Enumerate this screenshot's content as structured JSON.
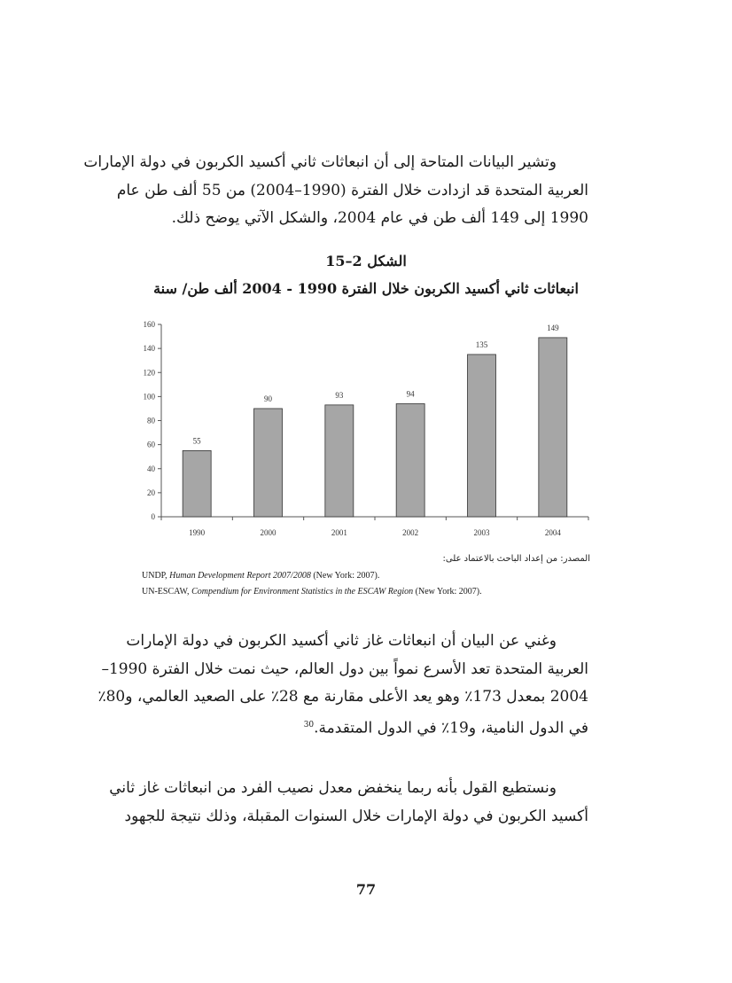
{
  "paragraph1": [
    "وتشير البيانات المتاحة إلى أن انبعاثات ثاني أكسيد الكربون في دولة الإمارات",
    "العربية المتحدة قد ازدادت خلال الفترة (1990–2004) من 55 ألف طن عام",
    "1990 إلى 149 ألف طن في عام 2004، والشكل الآتي يوضح ذلك."
  ],
  "figure": {
    "number": "الشكل 2–15",
    "title": "انبعاثات ثاني أكسيد الكربون خلال الفترة 1990 - 2004 ألف طن/ سنة"
  },
  "chart_data": {
    "type": "bar",
    "categories": [
      "1990",
      "2000",
      "2001",
      "2002",
      "2003",
      "2004"
    ],
    "values": [
      55,
      90,
      93,
      94,
      135,
      149
    ],
    "data_labels": [
      "55",
      "90",
      "93",
      "94",
      "135",
      "149"
    ],
    "title": "",
    "xlabel": "",
    "ylabel": "",
    "ylim": [
      0,
      160
    ],
    "yticks": [
      "0",
      "20",
      "40",
      "60",
      "80",
      "100",
      "120",
      "140",
      "160"
    ],
    "grid": false,
    "bar_color": "#a6a6a6",
    "edge_color": "#333333"
  },
  "source": {
    "label": "المصدر: من إعداد الباحث بالاعتماد على:",
    "ref1_org": "UNDP,",
    "ref1_title": "Human Development Report 2007/2008",
    "ref1_pub": "(New York: 2007).",
    "ref2_org": "UN-ESCAW,",
    "ref2_title": "Compendium for Environment Statistics in the ESCAW Region",
    "ref2_pub": "(New York: 2007)."
  },
  "paragraph2": [
    "وغني عن البيان أن انبعاثات غاز ثاني أكسيد الكربون في دولة الإمارات",
    "العربية المتحدة تعد الأسرع نمواً بين دول العالم، حيث نمت خلال الفترة 1990–",
    "2004 بمعدل 173٪ وهو يعد الأعلى مقارنة مع 28٪ على الصعيد العالمي، و80٪",
    "في الدول النامية، و19٪ في الدول المتقدمة."
  ],
  "footnote_ref": "30",
  "paragraph3": [
    "ونستطيع القول بأنه ربما ينخفض معدل نصيب الفرد من انبعاثات غاز ثاني",
    "أكسيد الكربون في دولة الإمارات خلال السنوات المقبلة، وذلك نتيجة للجهود"
  ],
  "page_number": "77"
}
